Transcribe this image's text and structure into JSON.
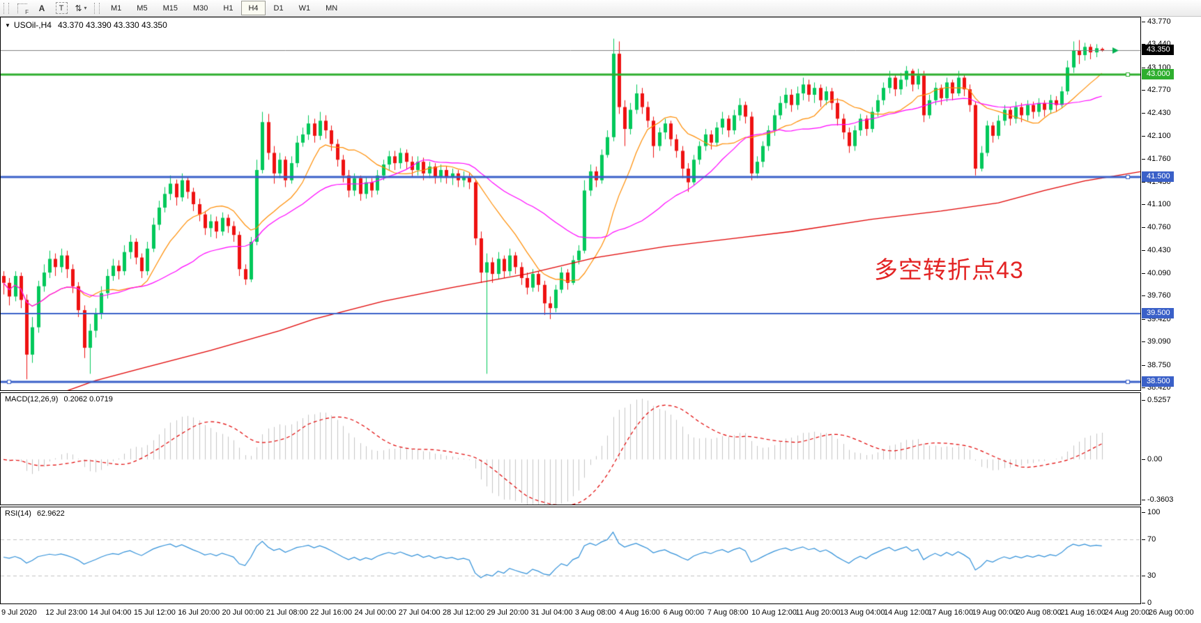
{
  "toolbar": {
    "tools": [
      {
        "name": "crosshair-grid",
        "glyph": "F"
      },
      {
        "name": "text-label",
        "glyph": "A"
      },
      {
        "name": "text-box",
        "glyph": "T"
      },
      {
        "name": "swap-objects",
        "glyph": "⇅"
      }
    ],
    "timeframes": [
      "M1",
      "M5",
      "M15",
      "M30",
      "H1",
      "H4",
      "D1",
      "W1",
      "MN"
    ],
    "active_timeframe": "H4"
  },
  "main_chart": {
    "symbol_text": "USOil-,H4",
    "ohlc_text": "43.370 43.390 43.330 43.350",
    "annotation": {
      "text": "多空转折点43",
      "color": "#e32424"
    },
    "price_axis_labels": [
      "43.770",
      "43.440",
      "43.100",
      "42.770",
      "42.430",
      "42.100",
      "41.760",
      "41.430",
      "41.100",
      "40.760",
      "40.430",
      "40.090",
      "39.760",
      "39.420",
      "39.090",
      "38.750",
      "38.420"
    ],
    "current_price": {
      "label": "43.350",
      "price": 43.35,
      "badge_color": "#000000"
    },
    "hlines": [
      {
        "price": 43.0,
        "label": "43.000",
        "color": "#2eae2e",
        "width": 3,
        "handles": [
          "right"
        ]
      },
      {
        "price": 41.5,
        "label": "41.500",
        "color": "#3a60c8",
        "width": 3,
        "handles": [
          "right"
        ]
      },
      {
        "price": 39.5,
        "label": "39.500",
        "color": "#3a60c8",
        "width": 2,
        "handles": []
      },
      {
        "price": 38.5,
        "label": "38.500",
        "color": "#3a60c8",
        "width": 3,
        "handles": [
          "left",
          "right"
        ]
      }
    ],
    "slow_ma_points": [
      [
        11,
        38.37
      ],
      [
        16,
        38.52
      ],
      [
        24,
        38.7
      ],
      [
        36,
        38.96
      ],
      [
        48,
        39.25
      ],
      [
        54,
        39.42
      ],
      [
        66,
        39.68
      ],
      [
        78,
        39.88
      ],
      [
        91,
        40.08
      ],
      [
        103,
        40.32
      ],
      [
        115,
        40.48
      ],
      [
        127,
        40.6
      ],
      [
        137,
        40.7
      ],
      [
        151,
        40.88
      ],
      [
        163,
        41.0
      ],
      [
        173,
        41.12
      ],
      [
        181,
        41.3
      ],
      [
        188,
        41.44
      ],
      [
        198,
        41.58
      ]
    ],
    "ma_periods": {
      "fast": 12,
      "mid": 30
    }
  },
  "macd": {
    "title_text": "MACD(12,26,9)",
    "values_text": "0.2062 0.0719",
    "scale_labels": [
      {
        "value": 0.5257,
        "text": "0.5257"
      },
      {
        "value": 0.0,
        "text": "0.00"
      },
      {
        "value": -0.3603,
        "text": "-0.3603"
      }
    ],
    "params": [
      12,
      26,
      9
    ]
  },
  "rsi": {
    "title_text": "RSI(14)",
    "value_text": "62.9622",
    "scale_labels": [
      {
        "value": 100,
        "text": "100"
      },
      {
        "value": 70,
        "text": "70"
      },
      {
        "value": 30,
        "text": "30"
      },
      {
        "value": 0,
        "text": "0"
      }
    ],
    "levels": [
      70,
      30
    ],
    "period": 14
  },
  "colors": {
    "bull": "#00c85a",
    "bear": "#ee1111",
    "ma_fast": "#ff8c00",
    "ma_mid": "#ff00ff",
    "ma_slow": "#e00000",
    "macd_hist": "#c4c4c4",
    "macd_signal": "#e00000",
    "rsi_line": "#2f8fd8",
    "level_dash": "#c0c0c0",
    "current_line": "#808080",
    "price_arrow": "#00b050"
  },
  "chart_data": {
    "type": "candlestick",
    "symbol": "USOil-",
    "timeframe": "H4",
    "title": "USOil-,H4 43.370 43.390 43.330 43.350",
    "y_range": [
      38.37,
      43.83
    ],
    "x_labels": [
      "9 Jul 2020",
      "12 Jul 23:00",
      "14 Jul 04:00",
      "15 Jul 12:00",
      "16 Jul 20:00",
      "20 Jul 00:00",
      "21 Jul 08:00",
      "22 Jul 16:00",
      "24 Jul 00:00",
      "27 Jul 04:00",
      "28 Jul 12:00",
      "29 Jul 20:00",
      "31 Jul 04:00",
      "3 Aug 08:00",
      "4 Aug 16:00",
      "6 Aug 00:00",
      "7 Aug 08:00",
      "10 Aug 12:00",
      "11 Aug 20:00",
      "13 Aug 04:00",
      "14 Aug 12:00",
      "17 Aug 16:00",
      "19 Aug 00:00",
      "20 Aug 08:00",
      "21 Aug 16:00",
      "24 Aug 20:00",
      "26 Aug 00:00"
    ],
    "indicators": [
      {
        "name": "MACD",
        "params": [
          12,
          26,
          9
        ],
        "displayed_values": [
          0.2062,
          0.0719
        ]
      },
      {
        "name": "RSI",
        "params": [
          14
        ],
        "displayed_value": 62.9622
      }
    ],
    "ohlc": [
      [
        40.05,
        40.12,
        39.78,
        39.95
      ],
      [
        39.95,
        40.02,
        39.62,
        39.75
      ],
      [
        39.75,
        40.12,
        39.68,
        40.05
      ],
      [
        40.05,
        40.1,
        39.58,
        39.7
      ],
      [
        39.7,
        39.78,
        38.54,
        38.9
      ],
      [
        38.9,
        39.45,
        38.78,
        39.3
      ],
      [
        39.3,
        39.98,
        39.22,
        39.9
      ],
      [
        39.9,
        40.22,
        39.82,
        40.1
      ],
      [
        40.1,
        40.42,
        40.02,
        40.3
      ],
      [
        40.3,
        40.38,
        40.05,
        40.18
      ],
      [
        40.18,
        40.45,
        40.1,
        40.35
      ],
      [
        40.35,
        40.42,
        40.02,
        40.15
      ],
      [
        40.15,
        40.22,
        39.8,
        39.9
      ],
      [
        39.9,
        39.96,
        39.45,
        39.55
      ],
      [
        39.55,
        39.62,
        38.85,
        39.0
      ],
      [
        39.0,
        39.35,
        38.62,
        39.25
      ],
      [
        39.25,
        39.58,
        39.15,
        39.5
      ],
      [
        39.5,
        39.9,
        39.42,
        39.8
      ],
      [
        39.8,
        40.15,
        39.72,
        40.05
      ],
      [
        40.05,
        40.3,
        39.98,
        40.2
      ],
      [
        40.2,
        40.28,
        40.0,
        40.12
      ],
      [
        40.12,
        40.5,
        40.06,
        40.4
      ],
      [
        40.4,
        40.65,
        40.3,
        40.55
      ],
      [
        40.55,
        40.6,
        40.22,
        40.32
      ],
      [
        40.32,
        40.38,
        40.02,
        40.12
      ],
      [
        40.12,
        40.55,
        40.06,
        40.45
      ],
      [
        40.45,
        40.9,
        40.4,
        40.8
      ],
      [
        40.8,
        41.15,
        40.72,
        41.05
      ],
      [
        41.05,
        41.35,
        40.98,
        41.25
      ],
      [
        41.25,
        41.52,
        41.16,
        41.4
      ],
      [
        41.4,
        41.46,
        41.08,
        41.2
      ],
      [
        41.2,
        41.55,
        41.14,
        41.45
      ],
      [
        41.45,
        41.5,
        41.18,
        41.28
      ],
      [
        41.28,
        41.34,
        41.0,
        41.1
      ],
      [
        41.1,
        41.18,
        40.85,
        40.95
      ],
      [
        40.95,
        41.0,
        40.65,
        40.75
      ],
      [
        40.75,
        40.95,
        40.62,
        40.85
      ],
      [
        40.85,
        40.92,
        40.6,
        40.7
      ],
      [
        40.7,
        40.98,
        40.64,
        40.9
      ],
      [
        40.9,
        40.95,
        40.68,
        40.78
      ],
      [
        40.78,
        40.85,
        40.55,
        40.65
      ],
      [
        40.65,
        40.7,
        40.05,
        40.15
      ],
      [
        40.15,
        40.22,
        39.92,
        40.0
      ],
      [
        40.0,
        40.62,
        39.96,
        40.55
      ],
      [
        40.55,
        41.75,
        40.5,
        41.6
      ],
      [
        41.6,
        42.45,
        41.55,
        42.3
      ],
      [
        42.3,
        42.42,
        41.75,
        41.85
      ],
      [
        41.85,
        41.95,
        41.4,
        41.55
      ],
      [
        41.55,
        41.85,
        41.48,
        41.75
      ],
      [
        41.75,
        41.8,
        41.35,
        41.45
      ],
      [
        41.45,
        41.8,
        41.4,
        41.7
      ],
      [
        41.7,
        42.1,
        41.64,
        42.0
      ],
      [
        42.0,
        42.22,
        41.94,
        42.12
      ],
      [
        42.12,
        42.4,
        42.04,
        42.28
      ],
      [
        42.28,
        42.35,
        42.0,
        42.1
      ],
      [
        42.1,
        42.45,
        42.04,
        42.32
      ],
      [
        42.32,
        42.4,
        42.06,
        42.18
      ],
      [
        42.18,
        42.25,
        41.88,
        41.98
      ],
      [
        41.98,
        42.05,
        41.65,
        41.75
      ],
      [
        41.75,
        41.82,
        41.42,
        41.52
      ],
      [
        41.52,
        41.6,
        41.2,
        41.3
      ],
      [
        41.3,
        41.55,
        41.22,
        41.48
      ],
      [
        41.48,
        41.52,
        41.15,
        41.25
      ],
      [
        41.25,
        41.5,
        41.18,
        41.42
      ],
      [
        41.42,
        41.48,
        41.2,
        41.3
      ],
      [
        41.3,
        41.6,
        41.24,
        41.52
      ],
      [
        41.52,
        41.75,
        41.45,
        41.68
      ],
      [
        41.68,
        41.88,
        41.6,
        41.8
      ],
      [
        41.8,
        41.88,
        41.6,
        41.7
      ],
      [
        41.7,
        41.92,
        41.62,
        41.85
      ],
      [
        41.85,
        41.9,
        41.62,
        41.72
      ],
      [
        41.72,
        41.8,
        41.5,
        41.6
      ],
      [
        41.6,
        41.8,
        41.52,
        41.72
      ],
      [
        41.72,
        41.78,
        41.45,
        41.55
      ],
      [
        41.55,
        41.72,
        41.48,
        41.65
      ],
      [
        41.65,
        41.7,
        41.4,
        41.5
      ],
      [
        41.5,
        41.68,
        41.42,
        41.6
      ],
      [
        41.6,
        41.65,
        41.4,
        41.5
      ],
      [
        41.5,
        41.62,
        41.38,
        41.55
      ],
      [
        41.55,
        41.6,
        41.35,
        41.45
      ],
      [
        41.45,
        41.58,
        41.35,
        41.5
      ],
      [
        41.5,
        41.55,
        41.32,
        41.42
      ],
      [
        41.42,
        41.45,
        40.5,
        40.6
      ],
      [
        40.6,
        40.7,
        39.95,
        40.1
      ],
      [
        40.1,
        40.38,
        38.62,
        40.25
      ],
      [
        40.25,
        40.32,
        39.95,
        40.08
      ],
      [
        40.08,
        40.4,
        40.0,
        40.3
      ],
      [
        40.3,
        40.35,
        40.02,
        40.12
      ],
      [
        40.12,
        40.45,
        40.05,
        40.35
      ],
      [
        40.35,
        40.4,
        40.08,
        40.18
      ],
      [
        40.18,
        40.25,
        39.92,
        40.02
      ],
      [
        40.02,
        40.1,
        39.78,
        39.88
      ],
      [
        39.88,
        40.15,
        39.82,
        40.08
      ],
      [
        40.08,
        40.12,
        39.82,
        39.92
      ],
      [
        39.92,
        39.98,
        39.48,
        39.65
      ],
      [
        39.65,
        39.75,
        39.42,
        39.58
      ],
      [
        39.58,
        39.92,
        39.52,
        39.85
      ],
      [
        39.85,
        40.18,
        39.8,
        40.1
      ],
      [
        40.1,
        40.15,
        39.85,
        39.95
      ],
      [
        39.95,
        40.35,
        39.92,
        40.28
      ],
      [
        40.28,
        40.5,
        40.22,
        40.42
      ],
      [
        40.42,
        41.45,
        40.38,
        41.3
      ],
      [
        41.3,
        41.68,
        41.22,
        41.58
      ],
      [
        41.58,
        41.65,
        41.35,
        41.45
      ],
      [
        41.45,
        41.9,
        41.4,
        41.82
      ],
      [
        41.82,
        42.18,
        41.78,
        42.08
      ],
      [
        42.08,
        43.52,
        42.02,
        43.3
      ],
      [
        43.3,
        43.48,
        42.42,
        42.52
      ],
      [
        42.52,
        42.62,
        41.95,
        42.2
      ],
      [
        42.2,
        42.58,
        42.12,
        42.48
      ],
      [
        42.48,
        42.85,
        42.42,
        42.72
      ],
      [
        42.72,
        42.8,
        42.42,
        42.52
      ],
      [
        42.52,
        42.6,
        42.22,
        42.32
      ],
      [
        42.32,
        42.38,
        41.78,
        41.95
      ],
      [
        41.95,
        42.22,
        41.88,
        42.15
      ],
      [
        42.15,
        42.35,
        42.05,
        42.28
      ],
      [
        42.28,
        42.32,
        41.95,
        42.05
      ],
      [
        42.05,
        42.12,
        41.78,
        41.88
      ],
      [
        41.88,
        41.95,
        41.48,
        41.62
      ],
      [
        41.62,
        41.7,
        41.28,
        41.42
      ],
      [
        41.42,
        41.82,
        41.38,
        41.75
      ],
      [
        41.75,
        42.02,
        41.68,
        41.95
      ],
      [
        41.95,
        42.2,
        41.88,
        42.12
      ],
      [
        42.12,
        42.18,
        41.9,
        42.0
      ],
      [
        42.0,
        42.3,
        41.95,
        42.22
      ],
      [
        42.22,
        42.45,
        42.12,
        42.35
      ],
      [
        42.35,
        42.4,
        42.08,
        42.18
      ],
      [
        42.18,
        42.48,
        42.12,
        42.4
      ],
      [
        42.4,
        42.65,
        42.32,
        42.55
      ],
      [
        42.55,
        42.6,
        42.28,
        42.38
      ],
      [
        42.38,
        42.45,
        41.45,
        41.55
      ],
      [
        41.55,
        41.8,
        41.48,
        41.72
      ],
      [
        41.72,
        42.02,
        41.64,
        41.95
      ],
      [
        41.95,
        42.25,
        41.88,
        42.18
      ],
      [
        42.18,
        42.48,
        42.1,
        42.4
      ],
      [
        42.4,
        42.68,
        42.34,
        42.58
      ],
      [
        42.58,
        42.8,
        42.5,
        42.7
      ],
      [
        42.7,
        42.78,
        42.45,
        42.55
      ],
      [
        42.55,
        42.82,
        42.48,
        42.72
      ],
      [
        42.72,
        42.95,
        42.62,
        42.85
      ],
      [
        42.85,
        42.92,
        42.6,
        42.7
      ],
      [
        42.7,
        42.88,
        42.58,
        42.8
      ],
      [
        42.8,
        42.85,
        42.52,
        42.62
      ],
      [
        42.62,
        42.82,
        42.55,
        42.75
      ],
      [
        42.75,
        42.8,
        42.48,
        42.58
      ],
      [
        42.58,
        42.65,
        42.25,
        42.35
      ],
      [
        42.35,
        42.42,
        42.05,
        42.15
      ],
      [
        42.15,
        42.22,
        41.85,
        41.95
      ],
      [
        41.95,
        42.25,
        41.88,
        42.18
      ],
      [
        42.18,
        42.42,
        42.1,
        42.35
      ],
      [
        42.35,
        42.4,
        42.1,
        42.2
      ],
      [
        42.2,
        42.52,
        42.15,
        42.45
      ],
      [
        42.45,
        42.7,
        42.38,
        42.62
      ],
      [
        42.62,
        42.88,
        42.55,
        42.8
      ],
      [
        42.8,
        43.05,
        42.72,
        42.95
      ],
      [
        42.95,
        43.0,
        42.68,
        42.78
      ],
      [
        42.78,
        43.02,
        42.7,
        42.92
      ],
      [
        42.92,
        43.12,
        42.82,
        43.05
      ],
      [
        43.05,
        43.08,
        42.75,
        42.85
      ],
      [
        42.85,
        43.08,
        42.78,
        42.98
      ],
      [
        42.98,
        43.05,
        42.3,
        42.4
      ],
      [
        42.4,
        42.7,
        42.35,
        42.62
      ],
      [
        42.62,
        42.88,
        42.55,
        42.8
      ],
      [
        42.8,
        42.85,
        42.55,
        42.65
      ],
      [
        42.65,
        42.95,
        42.6,
        42.88
      ],
      [
        42.88,
        42.92,
        42.62,
        42.72
      ],
      [
        42.72,
        43.05,
        42.68,
        42.95
      ],
      [
        42.95,
        43.0,
        42.68,
        42.78
      ],
      [
        42.78,
        42.85,
        42.45,
        42.55
      ],
      [
        42.55,
        42.6,
        41.52,
        41.62
      ],
      [
        41.62,
        41.95,
        41.58,
        41.85
      ],
      [
        41.85,
        42.32,
        41.8,
        42.25
      ],
      [
        42.25,
        42.3,
        42.0,
        42.1
      ],
      [
        42.1,
        42.4,
        42.05,
        42.32
      ],
      [
        42.32,
        42.55,
        42.25,
        42.48
      ],
      [
        42.48,
        42.52,
        42.25,
        42.35
      ],
      [
        42.35,
        42.6,
        42.28,
        42.52
      ],
      [
        42.52,
        42.58,
        42.3,
        42.4
      ],
      [
        42.4,
        42.62,
        42.32,
        42.55
      ],
      [
        42.55,
        42.6,
        42.35,
        42.45
      ],
      [
        42.45,
        42.65,
        42.38,
        42.58
      ],
      [
        42.58,
        42.62,
        42.38,
        42.48
      ],
      [
        42.48,
        42.7,
        42.42,
        42.62
      ],
      [
        42.62,
        42.68,
        42.45,
        42.55
      ],
      [
        42.55,
        42.82,
        42.5,
        42.75
      ],
      [
        42.75,
        43.2,
        42.7,
        43.1
      ],
      [
        43.1,
        43.48,
        43.02,
        43.35
      ],
      [
        43.35,
        43.5,
        43.15,
        43.28
      ],
      [
        43.28,
        43.46,
        43.2,
        43.4
      ],
      [
        43.4,
        43.44,
        43.22,
        43.32
      ],
      [
        43.32,
        43.44,
        43.25,
        43.38
      ],
      [
        43.37,
        43.39,
        43.33,
        43.35
      ]
    ]
  }
}
